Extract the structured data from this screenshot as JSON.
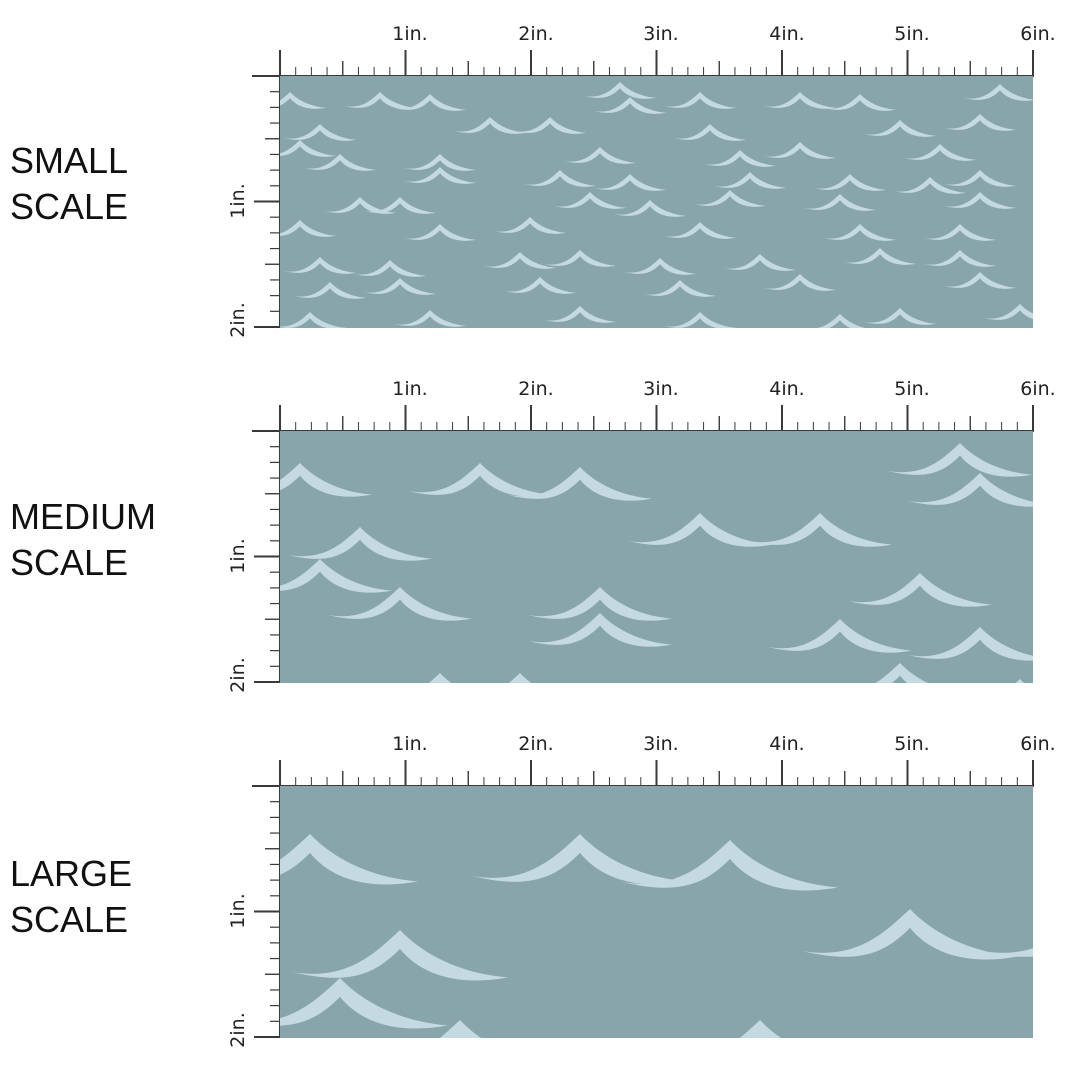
{
  "colors": {
    "fabric": "#89a5ac",
    "wave": "#c4dae0",
    "ruler": "#3a3a3a",
    "label": "#111111"
  },
  "ruler": {
    "horizontal_labels": [
      "1in.",
      "2in.",
      "3in.",
      "4in.",
      "5in.",
      "6in."
    ],
    "vertical_labels": [
      "1in.",
      "2in."
    ]
  },
  "pattern": {
    "motif": "wave-icon"
  },
  "panels": [
    {
      "id": "small",
      "label_line1": "SMALL",
      "label_line2": "SCALE",
      "wave_scale": 1
    },
    {
      "id": "medium",
      "label_line1": "MEDIUM",
      "label_line2": "SCALE",
      "wave_scale": 2
    },
    {
      "id": "large",
      "label_line1": "LARGE",
      "label_line2": "SCALE",
      "wave_scale": 3
    }
  ]
}
